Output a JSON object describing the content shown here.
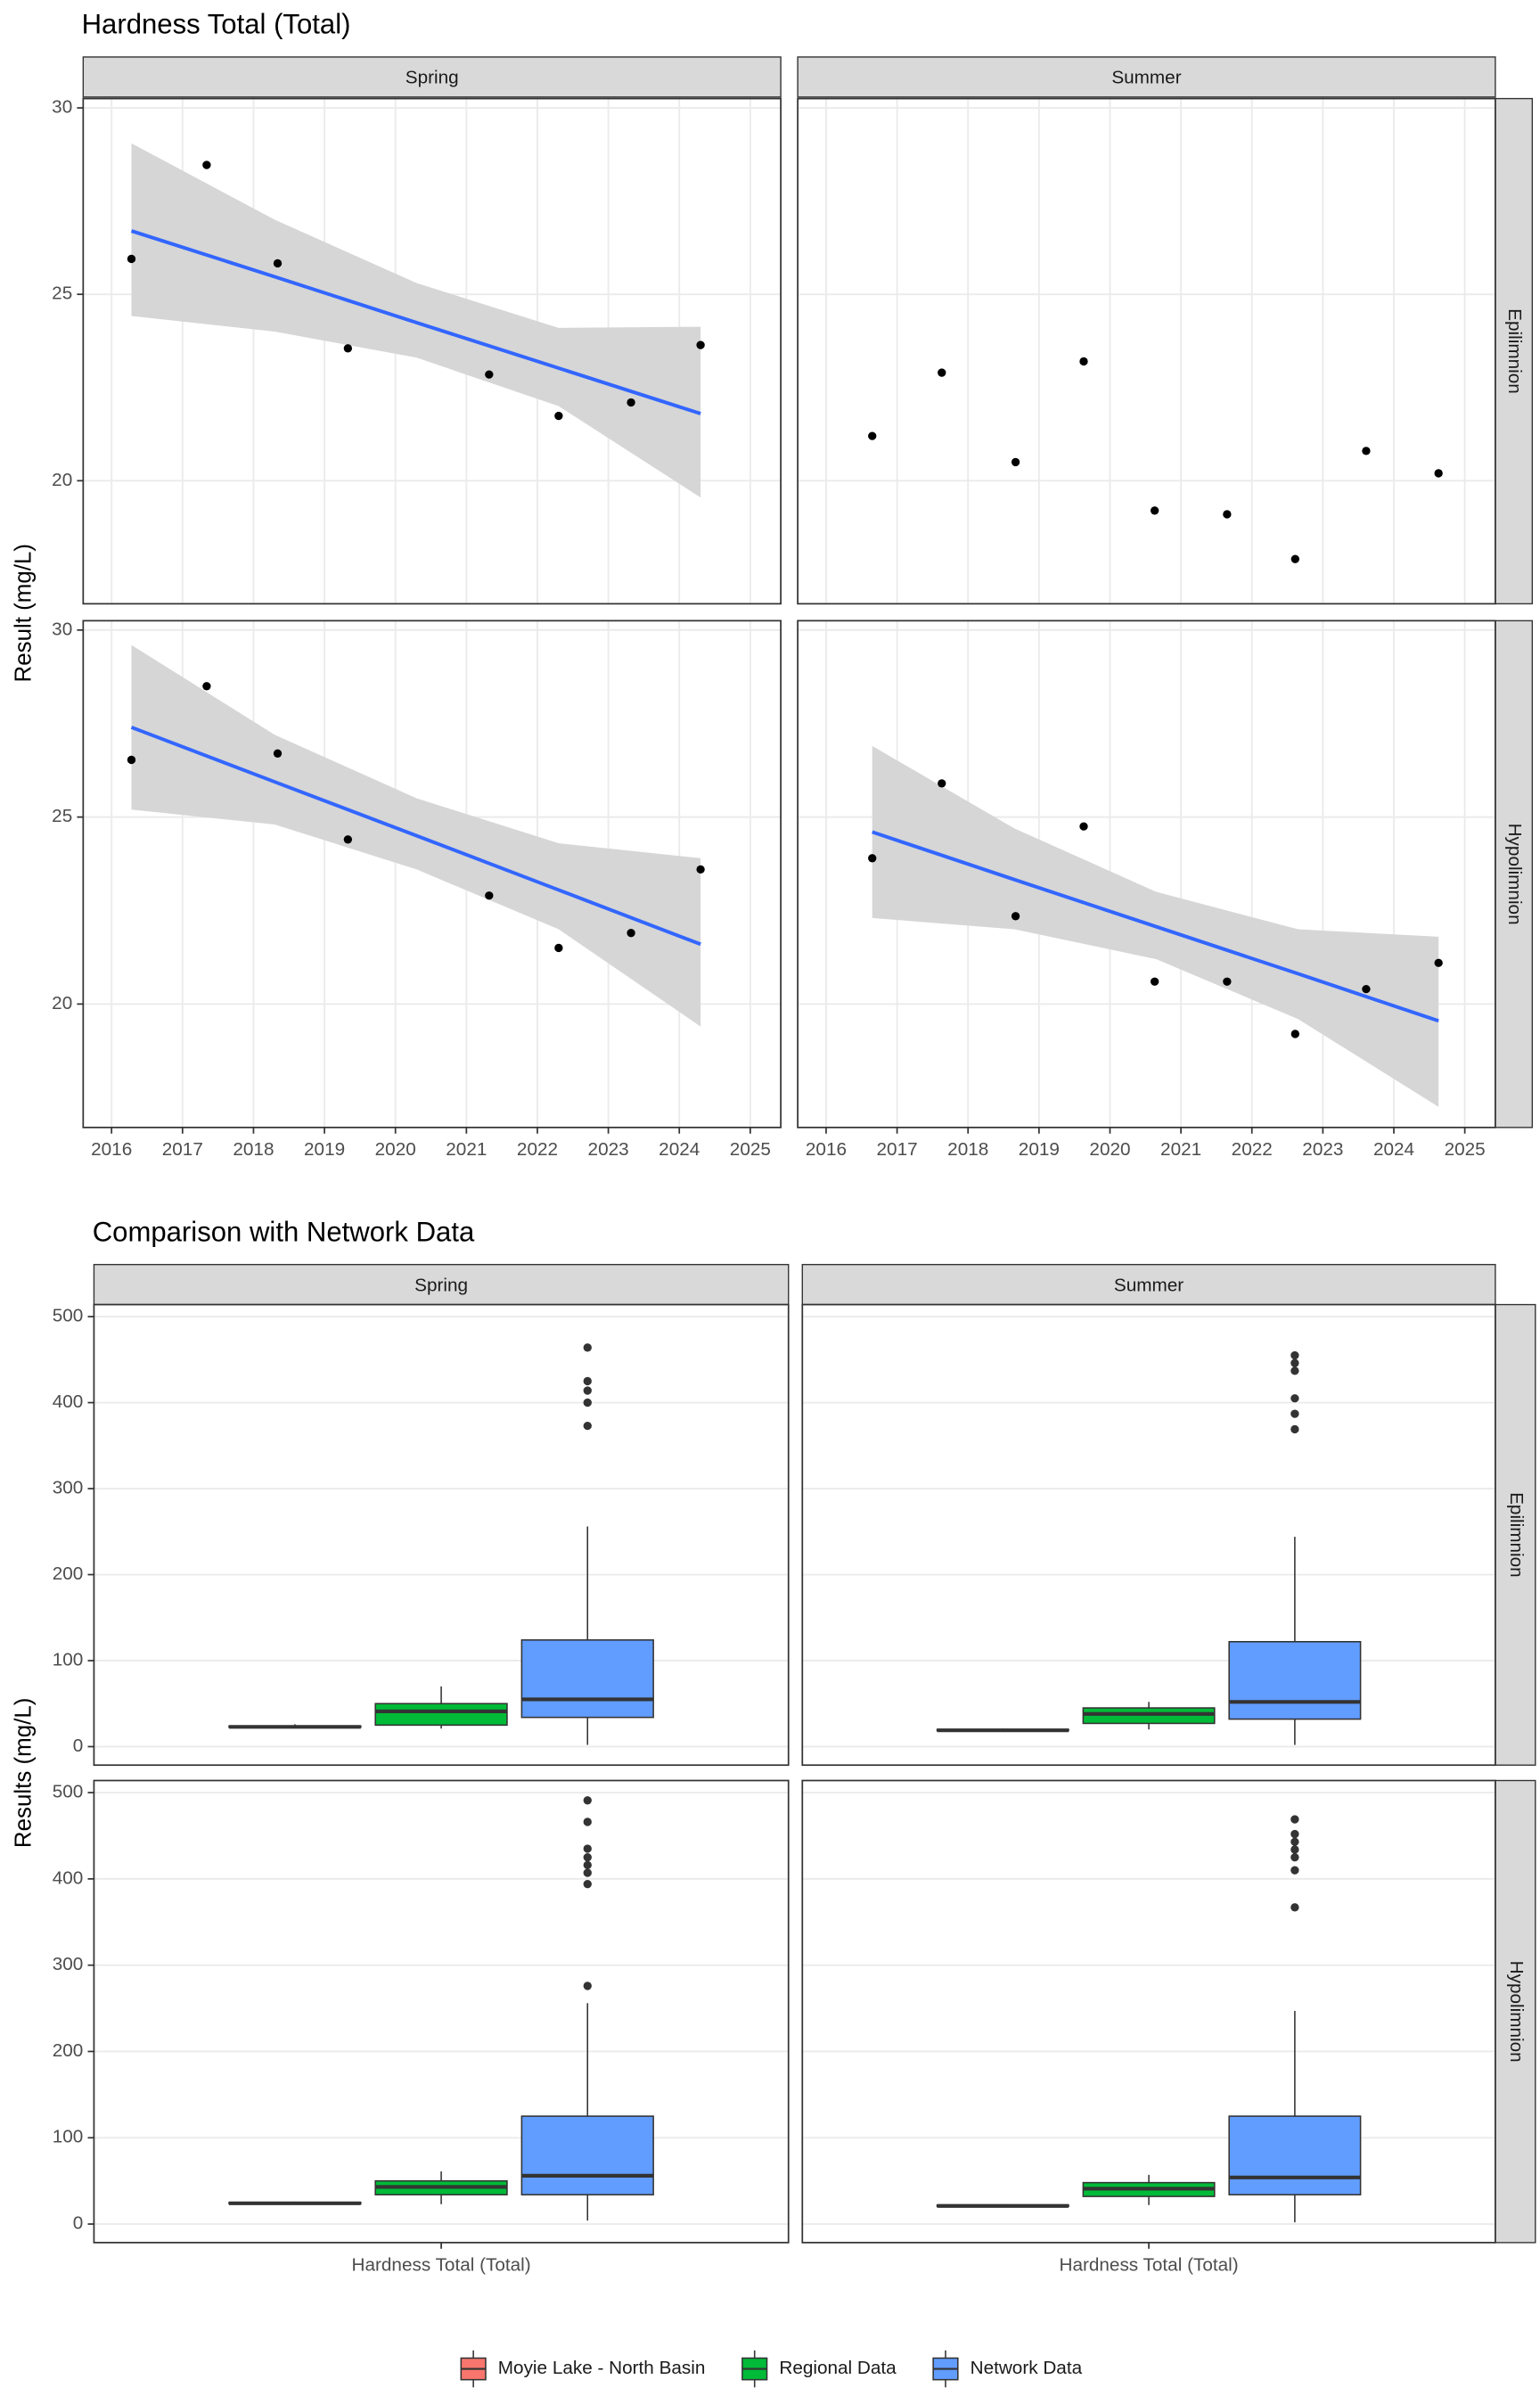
{
  "chart_data": [
    {
      "type": "scatter",
      "title": "Hardness Total (Total)",
      "y_label": "Result (mg/L)",
      "columns": [
        "Spring",
        "Summer"
      ],
      "rows": [
        "Epilimnion",
        "Hypolimnion"
      ],
      "xlim": [
        2015.6,
        2025.43
      ],
      "xticks": [
        2016,
        2017,
        2018,
        2019,
        2020,
        2021,
        2022,
        2023,
        2024,
        2025
      ],
      "ylim": [
        16.7,
        30.25
      ],
      "yticks": [
        20,
        25,
        30
      ],
      "grid": true,
      "point_color": "#000000",
      "fit_color": "#3366ff",
      "band_color": "#d6d6d6",
      "facets": [
        [
          {
            "x": [
              2016.28,
              2017.34,
              2018.34,
              2019.33,
              2021.32,
              2022.3,
              2023.32,
              2024.3
            ],
            "values": [
              25.95,
              28.47,
              25.83,
              23.55,
              22.85,
              21.74,
              22.1,
              23.64
            ],
            "fit": {
              "x": [
                2016.28,
                2018.3,
                2020.3,
                2022.3,
                2024.3
              ],
              "values": [
                26.7,
                25.47,
                24.24,
                23.02,
                21.8
              ],
              "lower": [
                24.42,
                24.0,
                23.3,
                22.0,
                19.55
              ],
              "upper": [
                29.05,
                27.0,
                25.3,
                24.1,
                24.13
              ]
            }
          },
          {
            "x": [
              2016.65,
              2017.63,
              2018.67,
              2019.63,
              2020.63,
              2021.65,
              2022.61,
              2023.61,
              2024.63
            ],
            "values": [
              21.2,
              22.9,
              20.5,
              23.2,
              19.2,
              19.1,
              17.9,
              20.8,
              20.2
            ]
          }
        ],
        [
          {
            "x": [
              2016.28,
              2017.34,
              2018.34,
              2019.33,
              2021.32,
              2022.3,
              2023.32,
              2024.3
            ],
            "values": [
              26.53,
              28.5,
              26.7,
              24.4,
              22.9,
              21.5,
              21.9,
              23.6
            ],
            "fit": {
              "x": [
                2016.28,
                2018.3,
                2020.3,
                2022.3,
                2024.3
              ],
              "values": [
                27.4,
                25.94,
                24.5,
                23.05,
                21.6
              ],
              "lower": [
                25.2,
                24.8,
                23.6,
                22.0,
                19.4
              ],
              "upper": [
                29.6,
                27.2,
                25.5,
                24.3,
                23.9
              ]
            }
          },
          {
            "x": [
              2016.65,
              2017.63,
              2018.67,
              2019.63,
              2020.63,
              2021.65,
              2022.61,
              2023.61,
              2024.63
            ],
            "values": [
              23.9,
              25.9,
              22.35,
              24.75,
              20.6,
              20.6,
              19.2,
              20.4,
              21.1
            ],
            "fit": {
              "x": [
                2016.65,
                2018.65,
                2020.65,
                2022.65,
                2024.63
              ],
              "values": [
                24.6,
                23.33,
                22.07,
                20.81,
                19.55
              ],
              "lower": [
                22.3,
                22.0,
                21.2,
                19.6,
                17.25
              ],
              "upper": [
                26.9,
                24.7,
                23.0,
                22.0,
                21.8
              ]
            }
          }
        ]
      ]
    },
    {
      "type": "box",
      "title": "Comparison with Network Data",
      "y_label": "Results (mg/L)",
      "categories": [
        "Hardness Total (Total)"
      ],
      "columns": [
        "Spring",
        "Summer"
      ],
      "rows": [
        "Epilimnion",
        "Hypolimnion"
      ],
      "ylim": [
        -21.5,
        514
      ],
      "yticks": [
        0,
        100,
        200,
        300,
        400,
        500
      ],
      "grid": true,
      "legend": "bottom",
      "series": [
        {
          "name": "Moyie Lake - North Basin",
          "color": "#f8766d"
        },
        {
          "name": "Regional Data",
          "color": "#00ba38"
        },
        {
          "name": "Network Data",
          "color": "#619cff"
        }
      ],
      "facets": [
        [
          {
            "boxes": [
              {
                "min": 22,
                "q1": 22.5,
                "median": 23,
                "q3": 24,
                "max": 26,
                "outliers": []
              },
              {
                "min": 21,
                "q1": 25,
                "median": 41,
                "q3": 50,
                "max": 70,
                "outliers": []
              },
              {
                "min": 2,
                "q1": 34,
                "median": 55,
                "q3": 124,
                "max": 256,
                "outliers": [
                  464,
                  425,
                  414,
                  400,
                  373
                ]
              }
            ]
          },
          {
            "boxes": [
              {
                "min": 18,
                "q1": 18.5,
                "median": 19,
                "q3": 20,
                "max": 21,
                "outliers": []
              },
              {
                "min": 20,
                "q1": 27,
                "median": 38,
                "q3": 45,
                "max": 52,
                "outliers": []
              },
              {
                "min": 2,
                "q1": 32,
                "median": 52,
                "q3": 122,
                "max": 244,
                "outliers": [
                  455,
                  446,
                  437,
                  405,
                  387,
                  369
                ]
              }
            ]
          }
        ],
        [
          {
            "boxes": [
              {
                "min": 23,
                "q1": 23.5,
                "median": 24,
                "q3": 25,
                "max": 26,
                "outliers": []
              },
              {
                "min": 23,
                "q1": 34,
                "median": 43,
                "q3": 50,
                "max": 61,
                "outliers": []
              },
              {
                "min": 4,
                "q1": 34,
                "median": 56,
                "q3": 125,
                "max": 256,
                "outliers": [
                  491,
                  466,
                  435,
                  425,
                  416,
                  407,
                  394,
                  276
                ]
              }
            ]
          },
          {
            "boxes": [
              {
                "min": 20,
                "q1": 20.5,
                "median": 21,
                "q3": 22,
                "max": 23,
                "outliers": []
              },
              {
                "min": 22,
                "q1": 32,
                "median": 41,
                "q3": 48,
                "max": 57,
                "outliers": []
              },
              {
                "min": 2,
                "q1": 34,
                "median": 54,
                "q3": 125,
                "max": 247,
                "outliers": [
                  469,
                  452,
                  443,
                  434,
                  425,
                  410,
                  367
                ]
              }
            ]
          }
        ]
      ]
    }
  ]
}
